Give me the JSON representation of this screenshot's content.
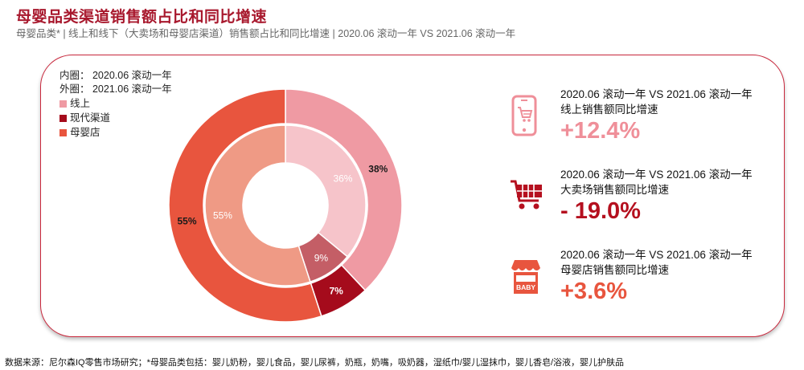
{
  "title": "母婴品类渠道销售额占比和同比增速",
  "subtitle": "母婴品类* | 线上和线下（大卖场和母婴店渠道）销售额占比和同比增速 | 2020.06 滚动一年 VS 2021.06 滚动一年",
  "legend": {
    "inner_label": "内圈：  2020.06 滚动一年",
    "outer_label": "外圈：  2021.06 滚动一年",
    "items": [
      {
        "label": "线上",
        "color": "#ef9aa3"
      },
      {
        "label": "现代渠道",
        "color": "#a50b1c"
      },
      {
        "label": "母婴店",
        "color": "#e8553e"
      }
    ]
  },
  "chart_data": {
    "type": "donut",
    "categories": [
      "线上",
      "现代渠道",
      "母婴店"
    ],
    "series": [
      {
        "ring": "inner",
        "values": [
          36,
          9,
          55
        ],
        "labels": [
          "36%",
          "9%",
          "55%"
        ],
        "colors": [
          "#f6c4ca",
          "#c45e66",
          "#ef9a85"
        ]
      },
      {
        "ring": "outer",
        "values": [
          38,
          7,
          55
        ],
        "labels": [
          "38%",
          "7%",
          "55%"
        ],
        "colors": [
          "#ef9aa3",
          "#a50b1c",
          "#e8553e"
        ]
      }
    ]
  },
  "kpis": [
    {
      "line1": "2020.06 滚动一年 VS 2021.06 滚动一年",
      "line2": "线上销售额同比增速",
      "value": "+12.4%",
      "color": "#ef8f99",
      "icon": "phone-cart-icon"
    },
    {
      "line1": "2020.06 滚动一年 VS 2021.06 滚动一年",
      "line2": "大卖场销售额同比增速",
      "value": "- 19.0%",
      "color": "#b5101f",
      "icon": "shopping-cart-icon"
    },
    {
      "line1": "2020.06 滚动一年 VS 2021.06 滚动一年",
      "line2": "母婴店销售额同比增速",
      "value": "+3.6%",
      "color": "#e8553e",
      "icon": "baby-store-icon",
      "icon_text": "BABY"
    }
  ],
  "footer": "数据来源：尼尔森IQ零售市场研究；*母婴品类包括：婴儿奶粉，婴儿食品，婴儿尿裤，奶瓶，奶嘴，吸奶器，湿纸巾/婴儿湿抹巾，婴儿香皂/浴液，婴儿护肤品"
}
